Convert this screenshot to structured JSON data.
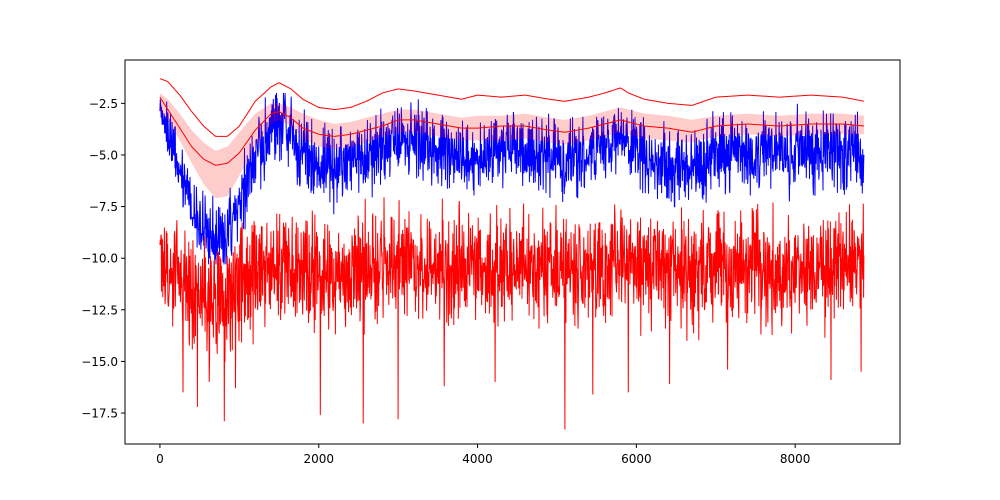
{
  "chart_data": {
    "type": "line",
    "title": "",
    "xlabel": "",
    "ylabel": "",
    "xlim": [
      -440,
      9320
    ],
    "ylim": [
      -19.0,
      -0.4
    ],
    "x_ticks": [
      0,
      2000,
      4000,
      6000,
      8000
    ],
    "x_tick_labels": [
      "0",
      "2000",
      "4000",
      "6000",
      "8000"
    ],
    "y_ticks": [
      -2.5,
      -5.0,
      -7.5,
      -10.0,
      -12.5,
      -15.0,
      -17.5
    ],
    "y_tick_labels": [
      "−2.5",
      "−5.0",
      "−7.5",
      "−10.0",
      "−12.5",
      "−15.0",
      "−17.5"
    ],
    "grid": false,
    "legend": "none",
    "x_range": [
      0,
      8870
    ],
    "series": [
      {
        "kind": "line",
        "color": "#ff0000",
        "x": [
          0,
          100,
          250,
          400,
          550,
          700,
          850,
          1000,
          1200,
          1400,
          1500,
          1650,
          1800,
          2000,
          2200,
          2400,
          2600,
          2800,
          3000,
          3200,
          3500,
          3800,
          4000,
          4300,
          4600,
          4900,
          5100,
          5400,
          5600,
          5800,
          5900,
          6100,
          6400,
          6700,
          7000,
          7400,
          7800,
          8200,
          8600,
          8870
        ],
        "y": [
          -1.3,
          -1.45,
          -2.1,
          -2.9,
          -3.6,
          -4.1,
          -4.1,
          -3.6,
          -2.4,
          -1.7,
          -1.5,
          -1.8,
          -2.3,
          -2.7,
          -2.8,
          -2.7,
          -2.4,
          -2.0,
          -1.8,
          -1.9,
          -2.1,
          -2.3,
          -2.1,
          -2.2,
          -2.1,
          -2.3,
          -2.4,
          -2.2,
          -2.0,
          -1.75,
          -2.0,
          -2.3,
          -2.5,
          -2.6,
          -2.2,
          -2.1,
          -2.2,
          -2.1,
          -2.2,
          -2.4
        ]
      },
      {
        "kind": "band",
        "color": "#ff0000",
        "opacity": 0.2,
        "x": [
          0,
          100,
          250,
          400,
          550,
          700,
          850,
          1000,
          1200,
          1400,
          1500,
          1650,
          1800,
          2000,
          2200,
          2400,
          2600,
          2800,
          3000,
          3200,
          3500,
          3800,
          4000,
          4300,
          4600,
          4900,
          5100,
          5400,
          5600,
          5800,
          5900,
          6100,
          6400,
          6700,
          7000,
          7400,
          7800,
          8200,
          8600,
          8870
        ],
        "lower": [
          -2.9,
          -3.3,
          -4.3,
          -5.4,
          -6.4,
          -7.1,
          -7.0,
          -6.0,
          -4.6,
          -3.5,
          -3.3,
          -3.6,
          -4.2,
          -4.6,
          -4.7,
          -4.6,
          -4.4,
          -4.1,
          -3.9,
          -3.9,
          -4.1,
          -4.3,
          -4.3,
          -4.3,
          -4.2,
          -4.4,
          -4.5,
          -4.3,
          -4.1,
          -3.9,
          -4.0,
          -4.2,
          -4.3,
          -4.4,
          -4.1,
          -4.0,
          -4.1,
          -4.0,
          -4.0,
          -4.0
        ],
        "upper": [
          -2.0,
          -2.3,
          -3.0,
          -3.8,
          -4.4,
          -4.8,
          -4.6,
          -3.9,
          -3.0,
          -2.5,
          -2.5,
          -2.7,
          -3.0,
          -3.3,
          -3.5,
          -3.4,
          -3.2,
          -3.0,
          -2.8,
          -2.8,
          -3.0,
          -3.2,
          -3.1,
          -3.1,
          -3.0,
          -3.2,
          -3.3,
          -3.1,
          -2.9,
          -2.7,
          -2.8,
          -3.0,
          -3.1,
          -3.3,
          -3.1,
          -3.0,
          -3.1,
          -3.0,
          -3.0,
          -3.1
        ]
      },
      {
        "kind": "line",
        "color": "#ff0000",
        "x": [
          0,
          100,
          250,
          400,
          550,
          700,
          850,
          1000,
          1200,
          1400,
          1500,
          1650,
          1800,
          2000,
          2200,
          2400,
          2600,
          2800,
          3000,
          3200,
          3500,
          3800,
          4000,
          4300,
          4600,
          4900,
          5100,
          5400,
          5600,
          5800,
          5900,
          6100,
          6400,
          6700,
          7000,
          7400,
          7800,
          8200,
          8600,
          8870
        ],
        "y": [
          -2.2,
          -2.8,
          -3.7,
          -4.6,
          -5.2,
          -5.5,
          -5.4,
          -4.9,
          -3.8,
          -3.0,
          -2.9,
          -3.2,
          -3.7,
          -4.0,
          -4.1,
          -4.0,
          -3.8,
          -3.6,
          -3.3,
          -3.3,
          -3.5,
          -3.7,
          -3.7,
          -3.6,
          -3.6,
          -3.8,
          -3.9,
          -3.7,
          -3.5,
          -3.3,
          -3.4,
          -3.6,
          -3.7,
          -3.9,
          -3.6,
          -3.5,
          -3.6,
          -3.5,
          -3.5,
          -3.6
        ]
      },
      {
        "kind": "noisy",
        "color": "#0000ff",
        "x": [
          0,
          100,
          250,
          400,
          550,
          700,
          850,
          1000,
          1200,
          1400,
          1500,
          1650,
          1800,
          2000,
          2200,
          2400,
          2600,
          2800,
          3000,
          3200,
          3500,
          3800,
          4000,
          4300,
          4600,
          4900,
          5100,
          5400,
          5600,
          5800,
          5900,
          6100,
          6400,
          6700,
          7000,
          7400,
          7800,
          8200,
          8600,
          8870
        ],
        "center": [
          -2.5,
          -3.8,
          -5.7,
          -7.4,
          -8.5,
          -9.2,
          -8.8,
          -7.2,
          -5.0,
          -3.6,
          -3.3,
          -3.8,
          -4.8,
          -5.4,
          -5.6,
          -5.4,
          -5.0,
          -4.6,
          -4.3,
          -4.4,
          -4.8,
          -5.2,
          -5.0,
          -4.7,
          -4.6,
          -5.0,
          -5.4,
          -5.0,
          -4.5,
          -4.2,
          -4.4,
          -5.0,
          -5.4,
          -5.6,
          -5.1,
          -4.8,
          -4.9,
          -4.8,
          -4.8,
          -5.0
        ],
        "spread": [
          0.5,
          0.7,
          0.8,
          1.0,
          1.1,
          1.2,
          1.2,
          1.2,
          1.1,
          1.1,
          1.1,
          1.1,
          1.1,
          1.2,
          1.2,
          1.2,
          1.2,
          1.2,
          1.1,
          1.1,
          1.1,
          1.1,
          1.1,
          1.1,
          1.1,
          1.1,
          1.1,
          1.1,
          1.1,
          1.1,
          1.1,
          1.1,
          1.1,
          1.1,
          1.1,
          1.1,
          1.1,
          1.1,
          1.1,
          1.1
        ],
        "approx_min": -10.3,
        "approx_max": -2.0
      },
      {
        "kind": "noisy",
        "color": "#ff0000",
        "x": [
          0,
          100,
          250,
          400,
          550,
          700,
          850,
          1000,
          1200,
          1400,
          1500,
          1650,
          1800,
          2000,
          2200,
          2400,
          2600,
          2800,
          3000,
          3200,
          3500,
          3800,
          4000,
          4300,
          4600,
          4900,
          5100,
          5400,
          5600,
          5800,
          5900,
          6100,
          6400,
          6700,
          7000,
          7400,
          7800,
          8200,
          8600,
          8870
        ],
        "center": [
          -10.0,
          -10.3,
          -11.0,
          -11.6,
          -12.0,
          -12.1,
          -11.8,
          -11.2,
          -10.6,
          -10.3,
          -10.2,
          -10.3,
          -10.5,
          -10.7,
          -10.8,
          -10.7,
          -10.5,
          -10.3,
          -10.2,
          -10.3,
          -10.4,
          -10.5,
          -10.5,
          -10.4,
          -10.4,
          -10.5,
          -10.6,
          -10.5,
          -10.3,
          -10.2,
          -10.3,
          -10.5,
          -10.6,
          -10.7,
          -10.5,
          -10.4,
          -10.5,
          -10.4,
          -10.4,
          -10.4
        ],
        "spread": [
          1.6,
          1.6,
          1.7,
          1.8,
          1.8,
          1.8,
          1.8,
          1.7,
          1.7,
          1.6,
          1.6,
          1.6,
          1.6,
          1.6,
          1.6,
          1.6,
          1.6,
          1.6,
          1.6,
          1.6,
          1.6,
          1.6,
          1.6,
          1.6,
          1.6,
          1.6,
          1.6,
          1.6,
          1.6,
          1.6,
          1.6,
          1.6,
          1.6,
          1.6,
          1.6,
          1.6,
          1.6,
          1.6,
          1.6,
          1.6
        ],
        "approx_min": -18.3,
        "approx_max": -6.7,
        "spikes": [
          [
            290,
            -16.5
          ],
          [
            470,
            -17.2
          ],
          [
            620,
            -16.0
          ],
          [
            810,
            -17.9
          ],
          [
            950,
            -16.3
          ],
          [
            2020,
            -17.6
          ],
          [
            2560,
            -18.0
          ],
          [
            3000,
            -17.8
          ],
          [
            3580,
            -16.2
          ],
          [
            4220,
            -16.0
          ],
          [
            5100,
            -18.3
          ],
          [
            5450,
            -16.6
          ],
          [
            5900,
            -16.5
          ],
          [
            6420,
            -16.1
          ],
          [
            7150,
            -15.4
          ],
          [
            8450,
            -15.9
          ],
          [
            8830,
            -15.5
          ]
        ]
      }
    ]
  }
}
